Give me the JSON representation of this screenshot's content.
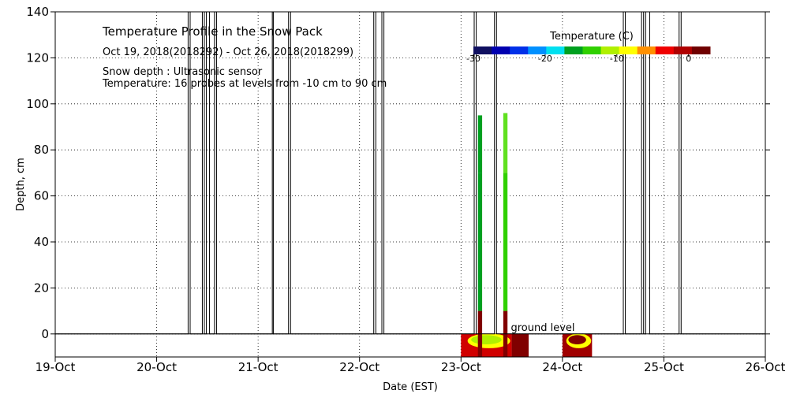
{
  "chart_data": {
    "type": "heatmap",
    "title": "Temperature Profile in the Snow Pack",
    "subtitle": "Oct 19, 2018(2018292) - Oct 26, 2018(2018299)",
    "notes": [
      "Snow depth : Ultrasonic sensor",
      "Temperature: 16 probes at levels from -10 cm to 90 cm"
    ],
    "xlabel": "Date (EST)",
    "ylabel": "Depth, cm",
    "x_ticks": [
      "19-Oct",
      "20-Oct",
      "21-Oct",
      "22-Oct",
      "23-Oct",
      "24-Oct",
      "25-Oct",
      "26-Oct"
    ],
    "xlim": [
      "2018-10-19 00:00",
      "2018-10-26 00:00"
    ],
    "ylim": [
      -10,
      140
    ],
    "y_ticks": [
      0,
      20,
      40,
      60,
      80,
      100,
      120,
      140
    ],
    "grid": true,
    "annotation": "ground level",
    "colorbar": {
      "title": "Temperature (C)",
      "range": [
        -30,
        3
      ],
      "ticks": [
        -30,
        -20,
        -10,
        0
      ],
      "tick_labels": [
        "-30",
        "-20",
        "-10",
        "0"
      ],
      "colors": [
        "#101060",
        "#0000b0",
        "#0030e8",
        "#0090ff",
        "#00e0f0",
        "#00a020",
        "#30d000",
        "#b0f000",
        "#ffff00",
        "#ff9000",
        "#f00000",
        "#b00000",
        "#700000"
      ]
    },
    "snow_depth_spikes_day": [
      1.31,
      1.33,
      1.45,
      1.47,
      1.49,
      1.52,
      1.57,
      1.59,
      2.14,
      2.15,
      2.3,
      2.32,
      3.14,
      3.16,
      3.22,
      3.24,
      4.13,
      4.15,
      4.33,
      4.35,
      5.6,
      5.62,
      5.78,
      5.8,
      5.82,
      5.86,
      6.15,
      6.17
    ],
    "snow_depth_baseline": 0,
    "probe_columns": [
      {
        "x_start": "2018-10-23 04:00",
        "x_end": "2018-10-23 05:00",
        "segments": [
          {
            "from": -10,
            "to": 10,
            "color": "#800000"
          },
          {
            "from": 10,
            "to": 70,
            "color": "#00a020"
          },
          {
            "from": 70,
            "to": 95,
            "color": "#00a020"
          }
        ]
      },
      {
        "x_start": "2018-10-23 10:00",
        "x_end": "2018-10-23 11:00",
        "segments": [
          {
            "from": -10,
            "to": 10,
            "color": "#800000"
          },
          {
            "from": 10,
            "to": 70,
            "color": "#30d000"
          },
          {
            "from": 70,
            "to": 96,
            "color": "#60e020"
          }
        ]
      }
    ],
    "soil_blocks": [
      {
        "x_start": "2018-10-23 00:00",
        "x_end": "2018-10-23 12:00",
        "from": -10,
        "to": 0,
        "color": "#d00000",
        "core_color": "#b0f000"
      },
      {
        "x_start": "2018-10-23 12:00",
        "x_end": "2018-10-23 16:00",
        "from": -10,
        "to": 0,
        "color": "#800000",
        "core_color": "#800000"
      },
      {
        "x_start": "2018-10-24 00:00",
        "x_end": "2018-10-24 07:00",
        "from": -10,
        "to": 0,
        "color": "#a00000",
        "core_color": "#800000"
      }
    ]
  }
}
